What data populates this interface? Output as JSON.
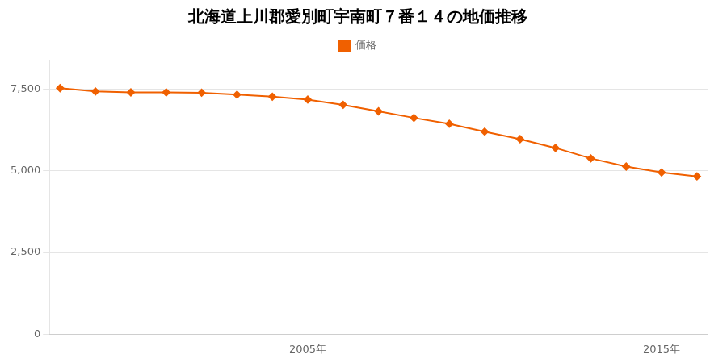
{
  "chart_data": {
    "type": "line",
    "title": "北海道上川郡愛別町宇南町７番１４の地価推移",
    "x": [
      1998,
      1999,
      2000,
      2001,
      2002,
      2003,
      2004,
      2005,
      2006,
      2007,
      2008,
      2009,
      2010,
      2011,
      2012,
      2013,
      2014,
      2015,
      2016
    ],
    "series": [
      {
        "name": "価格",
        "color": "#F06000",
        "marker": "diamond",
        "line_style": "solid",
        "values": [
          7530,
          7430,
          7400,
          7400,
          7390,
          7330,
          7270,
          7180,
          7020,
          6820,
          6620,
          6440,
          6200,
          5970,
          5700,
          5380,
          5130,
          4950,
          4830
        ]
      }
    ],
    "xlim": [
      1997.7,
      2016.3
    ],
    "xticks": [
      {
        "value": 2005,
        "label": "2005年"
      },
      {
        "value": 2015,
        "label": "2015年"
      }
    ],
    "ylim": [
      0,
      8400
    ],
    "yticks": [
      0,
      {
        "value": 2500,
        "label": "2,500"
      },
      {
        "value": 5000,
        "label": "5,000"
      },
      {
        "value": 7500,
        "label": "7,500"
      }
    ],
    "grid": "y",
    "legend": "top"
  }
}
